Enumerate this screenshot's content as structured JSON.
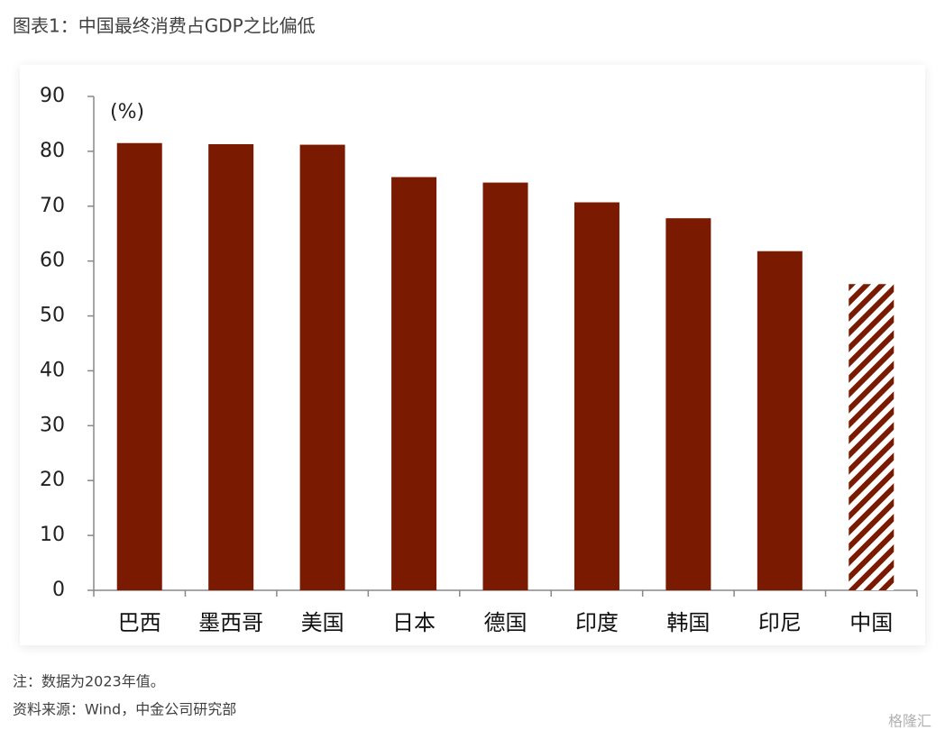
{
  "chart_data": {
    "type": "bar",
    "title": "图表1：中国最终消费占GDP之比偏低",
    "unit_label": "(%)",
    "categories": [
      "巴西",
      "墨西哥",
      "美国",
      "日本",
      "德国",
      "印度",
      "韩国",
      "印尼",
      "中国"
    ],
    "values": [
      81.5,
      81.3,
      81.2,
      75.3,
      74.3,
      70.7,
      67.8,
      61.8,
      55.8
    ],
    "hatched": [
      false,
      false,
      false,
      false,
      false,
      false,
      false,
      false,
      true
    ],
    "color": "#7a1a00",
    "ylim": [
      0,
      90
    ],
    "yticks": [
      0,
      10,
      20,
      30,
      40,
      50,
      60,
      70,
      80,
      90
    ],
    "grid": false,
    "notes": [
      "注：数据为2023年值。",
      "资料来源：Wind，中金公司研究部"
    ],
    "watermark": "格隆汇"
  }
}
